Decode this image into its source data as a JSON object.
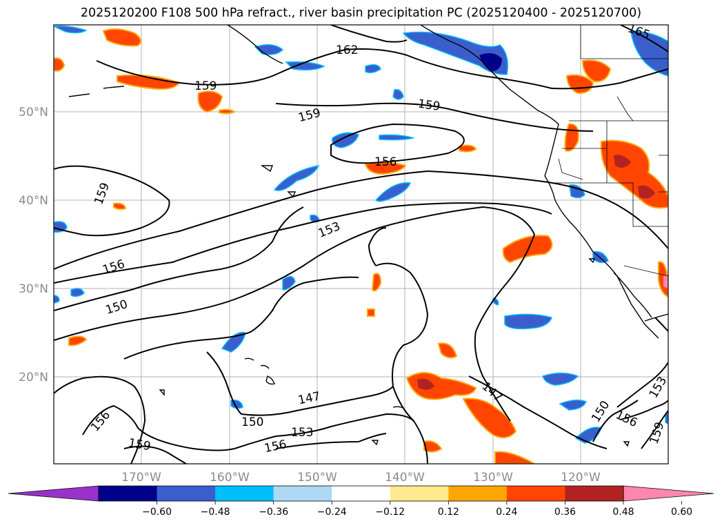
{
  "title": "2025120200 F108 500 hPa refract., river basin precipitation PC (2025120400 - 2025120700)",
  "map": {
    "lat_labels": [
      "50°N",
      "40°N",
      "30°N",
      "20°N"
    ],
    "lon_labels": [
      "170°W",
      "160°W",
      "150°W",
      "140°W",
      "130°W",
      "120°W"
    ],
    "contour_labels": [
      "165",
      "162",
      "159",
      "159",
      "159",
      "159",
      "156",
      "156",
      "153",
      "150",
      "147",
      "147",
      "150",
      "153",
      "156",
      "156",
      "156",
      "159",
      "159",
      "150"
    ]
  },
  "colorbar": {
    "colors": [
      "#9932cc",
      "#00008b",
      "#3a5fcd",
      "#00bfff",
      "#add8f6",
      "#ffffff",
      "#ffe98c",
      "#ffa500",
      "#ff4500",
      "#b22222",
      "#ff86b0"
    ],
    "tick_labels": [
      "−0.60",
      "−0.48",
      "−0.36",
      "−0.24",
      "−0.12",
      "0.12",
      "0.24",
      "0.36",
      "0.48",
      "0.60"
    ]
  }
}
